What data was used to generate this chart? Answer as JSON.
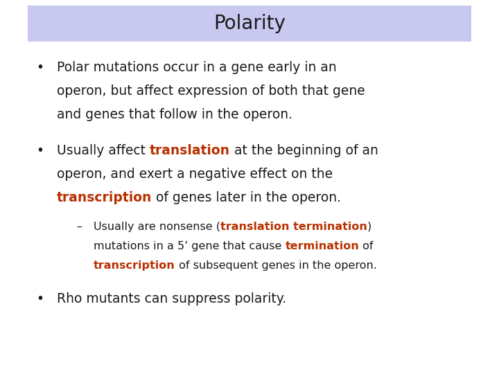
{
  "title": "Polarity",
  "title_bg": "#c8c8f0",
  "bg_color": "#ffffff",
  "title_fontsize": 20,
  "body_fontsize": 13.5,
  "sub_fontsize": 11.5,
  "black": "#1a1a1a",
  "red": "#b83000",
  "bullet1_line1": "Polar mutations occur in a gene early in an",
  "bullet1_line2": "operon, but affect expression of both that gene",
  "bullet1_line3": "and genes that follow in the operon.",
  "bullet2_pre": "Usually affect ",
  "bullet2_red1": "translation",
  "bullet2_post1": " at the beginning of an",
  "bullet2_line2": "operon, and exert a negative effect on the",
  "bullet2_red2": "transcription",
  "bullet2_post2": " of genes later in the operon.",
  "sub_pre1": "Usually are nonsense (",
  "sub_red1": "translation termination",
  "sub_post1": ")",
  "sub_line2_pre": "mutations in a 5’ gene that cause ",
  "sub_line2_red": "termination",
  "sub_line2_post": " of",
  "sub_line3_red": "transcription",
  "sub_line3_post": " of subsequent genes in the operon.",
  "bullet3": "Rho mutants can suppress polarity."
}
